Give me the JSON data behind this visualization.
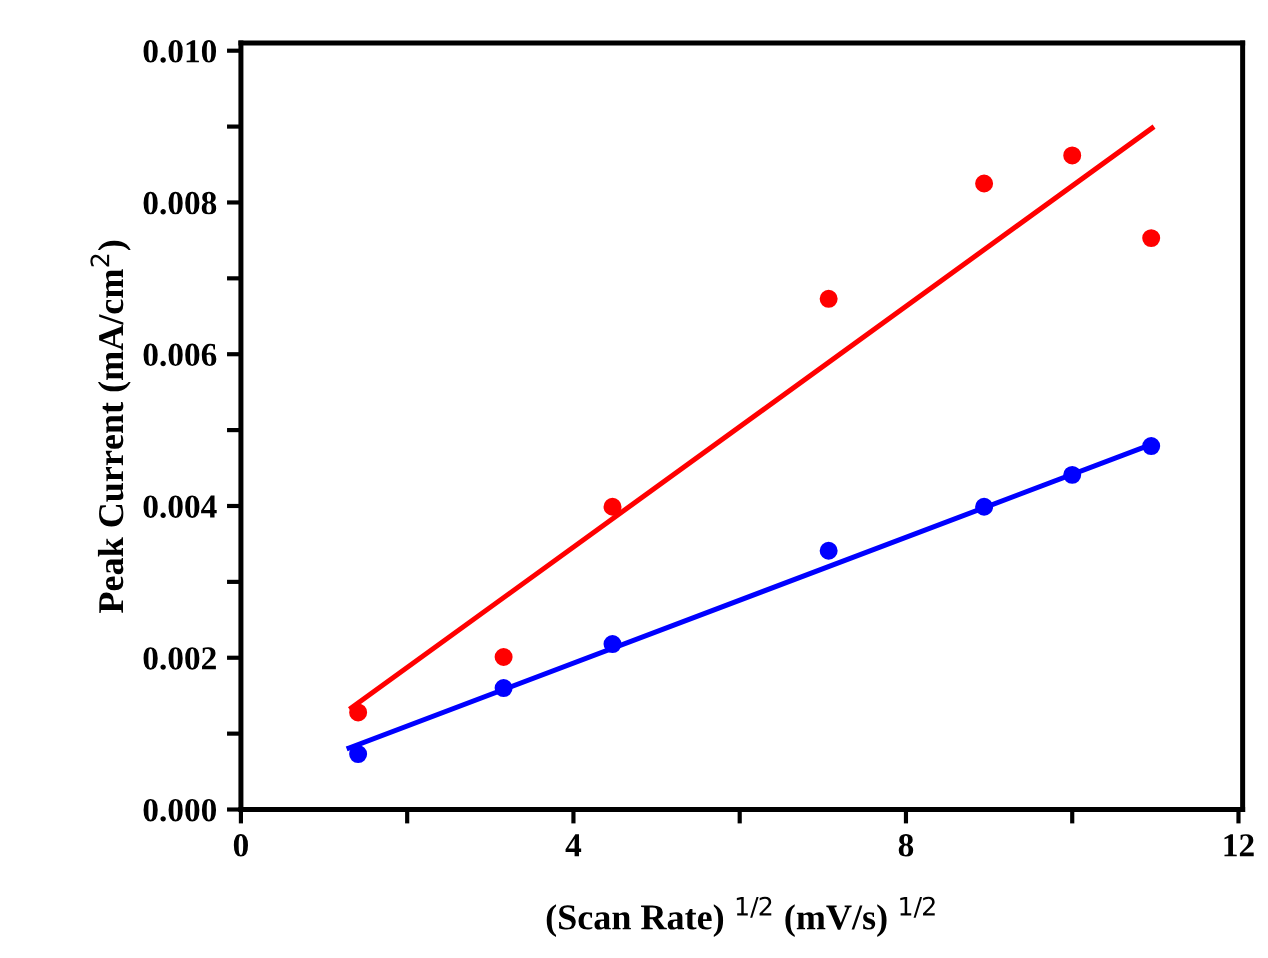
{
  "chart_data": {
    "type": "scatter",
    "xlabel": "(Scan Rate) $^{1/2}$ (mV/s) $^{1/2}$",
    "ylabel": "Peak Current (mA/cm$^{2}$)",
    "x": [
      1.41,
      3.16,
      4.47,
      7.07,
      8.94,
      10.0,
      10.95
    ],
    "series": [
      {
        "color": "#ff0000",
        "values": [
          0.00128,
          0.00201,
          0.00399,
          0.00673,
          0.00825,
          0.00862,
          0.00753
        ]
      },
      {
        "color": "#0000ff",
        "values": [
          0.00073,
          0.0016,
          0.00218,
          0.00341,
          0.00399,
          0.00441,
          0.00479
        ]
      },
      {
        "type": "line",
        "marker": "none",
        "color": "#ff0000",
        "x": [
          1.33,
          10.96
        ],
        "values": [
          0.00134,
          0.00898
        ]
      },
      {
        "type": "line",
        "marker": "none",
        "color": "#0000ff",
        "x": [
          1.3,
          10.95
        ],
        "values": [
          0.00081,
          0.00481
        ]
      }
    ],
    "xlim": [
      0,
      12.05
    ],
    "ylim": [
      0,
      0.0101
    ],
    "xticks": [
      0,
      {
        "value": 2,
        "label": null
      },
      4,
      {
        "value": 6,
        "label": null
      },
      8,
      {
        "value": 10,
        "label": null
      },
      12
    ],
    "yticks": [
      {
        "value": 0,
        "label": "0.000"
      },
      {
        "value": 0.001,
        "label": null
      },
      {
        "value": 0.002,
        "label": "0.002"
      },
      {
        "value": 0.003,
        "label": null
      },
      {
        "value": 0.004,
        "label": "0.004"
      },
      {
        "value": 0.005,
        "label": null
      },
      {
        "value": 0.006,
        "label": "0.006"
      },
      {
        "value": 0.007,
        "label": null
      },
      {
        "value": 0.008,
        "label": "0.008"
      },
      {
        "value": 0.009,
        "label": null
      },
      {
        "value": 0.01,
        "label": "0.010"
      }
    ],
    "marker": "circle",
    "grid": false,
    "legend": false
  }
}
